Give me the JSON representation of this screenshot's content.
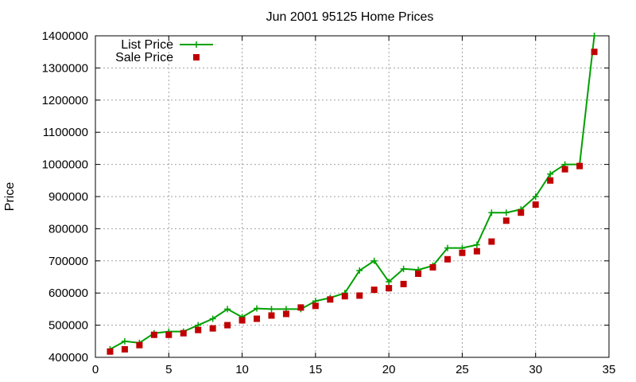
{
  "chart_data": {
    "type": "line",
    "title": "Jun 2001 95125 Home Prices",
    "xlabel": "",
    "ylabel": "Price",
    "xlim": [
      0,
      35
    ],
    "ylim": [
      400000,
      1400000
    ],
    "xticks": [
      0,
      5,
      10,
      15,
      20,
      25,
      30,
      35
    ],
    "yticks": [
      400000,
      500000,
      600000,
      700000,
      800000,
      900000,
      1000000,
      1100000,
      1200000,
      1300000,
      1400000
    ],
    "grid": true,
    "legend_position": "top-left",
    "series": [
      {
        "name": "List Price",
        "style": "line-with-plus-markers",
        "color": "#00a000",
        "x": [
          1,
          2,
          3,
          4,
          5,
          6,
          7,
          8,
          9,
          10,
          11,
          12,
          13,
          14,
          15,
          16,
          17,
          18,
          19,
          20,
          21,
          22,
          23,
          24,
          25,
          26,
          27,
          28,
          29,
          30,
          31,
          32,
          33,
          34
        ],
        "y": [
          425000,
          450000,
          445000,
          475000,
          480000,
          480000,
          500000,
          520000,
          550000,
          525000,
          552000,
          550000,
          550000,
          550000,
          575000,
          585000,
          600000,
          670000,
          700000,
          635000,
          675000,
          672000,
          685000,
          740000,
          740000,
          750000,
          850000,
          850000,
          860000,
          900000,
          970000,
          1000000,
          1000000,
          1400000
        ]
      },
      {
        "name": "Sale Price",
        "style": "square-markers",
        "color": "#c00000",
        "x": [
          1,
          2,
          3,
          4,
          5,
          6,
          7,
          8,
          9,
          10,
          11,
          12,
          13,
          14,
          15,
          16,
          17,
          18,
          19,
          20,
          21,
          22,
          23,
          24,
          25,
          26,
          27,
          28,
          29,
          30,
          31,
          32,
          33,
          34
        ],
        "y": [
          418000,
          425000,
          438000,
          470000,
          470000,
          475000,
          485000,
          490000,
          500000,
          515000,
          520000,
          530000,
          535000,
          555000,
          560000,
          580000,
          590000,
          592000,
          610000,
          615000,
          628000,
          660000,
          680000,
          705000,
          725000,
          730000,
          760000,
          825000,
          850000,
          875000,
          950000,
          985000,
          995000,
          1350000
        ]
      }
    ]
  }
}
